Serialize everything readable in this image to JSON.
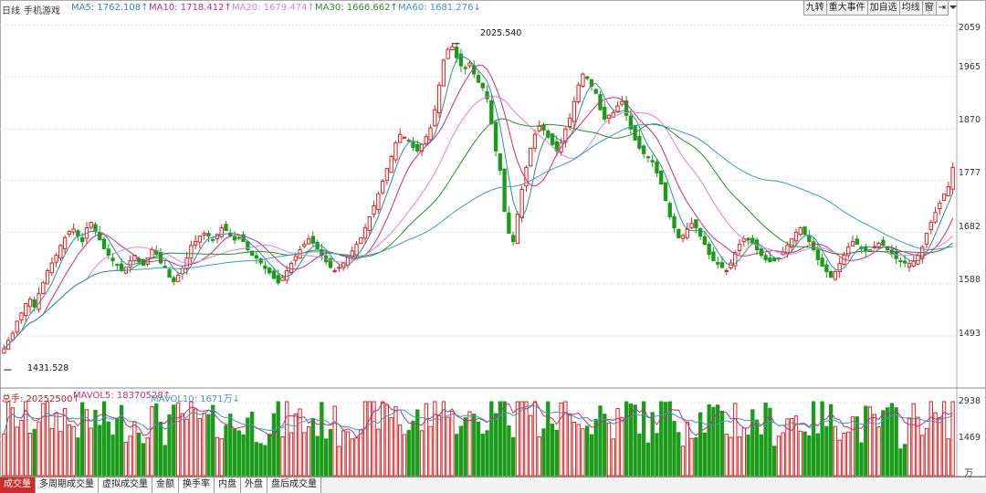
{
  "header": {
    "period": "日线",
    "name": "手机游戏",
    "ma5": "MA5: 1762.108↑",
    "ma10": "MA10: 1718.412↑",
    "ma20": "MA20: 1679.474↑",
    "ma30": "MA30: 1666.662↑",
    "ma60": "MA60: 1681.276↓"
  },
  "toolbar": {
    "b1": "九转",
    "b2": "重大事件",
    "b3": "加自选",
    "b4": "均线",
    "b5": "窗",
    "b6": "⇥"
  },
  "price_axis": [
    "2059",
    "1965",
    "1870",
    "1777",
    "1682",
    "1588",
    "1493"
  ],
  "price_extremes": {
    "high": "2025.540",
    "low": "1431.528"
  },
  "volume_header": {
    "total": "总手: 20252500↑",
    "mavol5": "MAVOL5: 18370528↑",
    "mavol10": "MAVOL10: 1671万↓"
  },
  "volume_axis": [
    "2938",
    "1469",
    "万"
  ],
  "tabs": [
    "成交量",
    "多周期成交量",
    "虚拟成交量",
    "金额",
    "换手率",
    "内盘",
    "外盘",
    "盘后成交量"
  ],
  "colors": {
    "up": "#e02020",
    "down": "#1a9c1a",
    "ma5": "#2e8c9e",
    "ma10": "#c0307a",
    "ma20": "#d882d8",
    "ma30": "#2a8c2a",
    "ma60": "#3c9bb8",
    "grid": "#e2e2e2"
  },
  "chart_data": {
    "type": "candlestick",
    "ylim": [
      1400,
      2075
    ],
    "ohlc_close": [
      1470,
      1485,
      1498,
      1520,
      1535,
      1552,
      1560,
      1546,
      1570,
      1590,
      1612,
      1626,
      1640,
      1658,
      1672,
      1683,
      1688,
      1675,
      1665,
      1690,
      1700,
      1685,
      1668,
      1652,
      1640,
      1630,
      1622,
      1612,
      1618,
      1630,
      1640,
      1628,
      1622,
      1635,
      1650,
      1642,
      1626,
      1618,
      1600,
      1592,
      1604,
      1616,
      1635,
      1658,
      1665,
      1675,
      1680,
      1675,
      1668,
      1678,
      1690,
      1685,
      1676,
      1668,
      1672,
      1665,
      1650,
      1640,
      1635,
      1626,
      1616,
      1608,
      1598,
      1590,
      1600,
      1612,
      1625,
      1638,
      1650,
      1660,
      1670,
      1662,
      1652,
      1640,
      1628,
      1618,
      1612,
      1618,
      1626,
      1636,
      1648,
      1660,
      1672,
      1690,
      1710,
      1730,
      1752,
      1775,
      1798,
      1820,
      1845,
      1860,
      1855,
      1848,
      1836,
      1830,
      1842,
      1856,
      1872,
      1905,
      1950,
      1995,
      2015,
      2020,
      2000,
      1985,
      1980,
      1990,
      1970,
      1955,
      1945,
      1925,
      1880,
      1830,
      1795,
      1720,
      1680,
      1665,
      1715,
      1760,
      1800,
      1835,
      1860,
      1875,
      1868,
      1855,
      1842,
      1830,
      1845,
      1870,
      1890,
      1920,
      1950,
      1970,
      1962,
      1948,
      1935,
      1905,
      1888,
      1895,
      1900,
      1912,
      1920,
      1895,
      1870,
      1850,
      1835,
      1825,
      1818,
      1810,
      1790,
      1770,
      1740,
      1710,
      1690,
      1672,
      1676,
      1688,
      1698,
      1690,
      1675,
      1660,
      1642,
      1630,
      1624,
      1618,
      1612,
      1626,
      1645,
      1660,
      1670,
      1668,
      1662,
      1650,
      1640,
      1632,
      1628,
      1630,
      1635,
      1646,
      1658,
      1670,
      1682,
      1690,
      1678,
      1665,
      1650,
      1632,
      1620,
      1610,
      1600,
      1610,
      1625,
      1640,
      1655,
      1665,
      1660,
      1652,
      1648,
      1650,
      1656,
      1662,
      1658,
      1650,
      1642,
      1634,
      1630,
      1626,
      1625,
      1630,
      1640,
      1655,
      1680,
      1700,
      1718,
      1735,
      1752,
      1765,
      1800
    ],
    "volume_unit": "万",
    "series": [
      {
        "name": "MA5",
        "value": 1762.108
      },
      {
        "name": "MA10",
        "value": 1718.412
      },
      {
        "name": "MA20",
        "value": 1679.474
      },
      {
        "name": "MA30",
        "value": 1666.662
      },
      {
        "name": "MA60",
        "value": 1681.276
      }
    ]
  }
}
